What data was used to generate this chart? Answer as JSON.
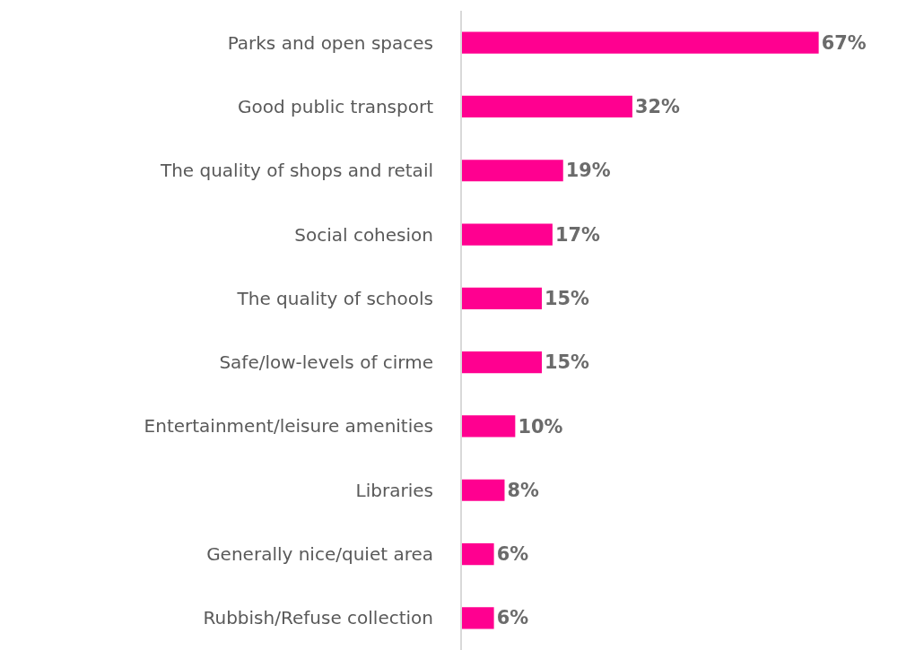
{
  "chart_data": {
    "type": "bar",
    "orientation": "horizontal",
    "categories": [
      "Parks and open spaces",
      "Good public transport",
      "The quality of shops and retail",
      "Social cohesion",
      "The quality of schools",
      "Safe/low-levels of cirme",
      "Entertainment/leisure amenities",
      "Libraries",
      "Generally nice/quiet area",
      "Rubbish/Refuse collection"
    ],
    "values": [
      67,
      32,
      19,
      17,
      15,
      15,
      10,
      8,
      6,
      6
    ],
    "value_labels": [
      "67%",
      "32%",
      "19%",
      "17%",
      "15%",
      "15%",
      "10%",
      "8%",
      "6%",
      "6%"
    ],
    "color": "#ff0090",
    "legend": false
  }
}
